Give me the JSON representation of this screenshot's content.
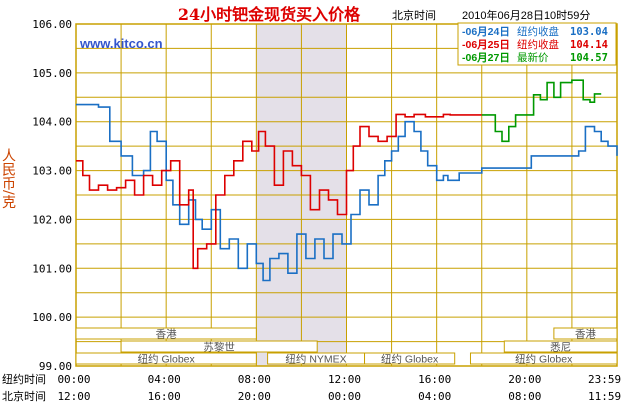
{
  "header": {
    "title": "24小时钯金现货买入价格",
    "beijing_time_label": "北京时间",
    "timestamp": "2010年06月28日10时59分",
    "watermark": "www.kitco.cn"
  },
  "legend": [
    {
      "date": "06月24日",
      "label": "纽约收盘",
      "value": "103.04",
      "color": "#1a6fc4"
    },
    {
      "date": "06月25日",
      "label": "纽约收盘",
      "value": "104.14",
      "color": "#dd0000"
    },
    {
      "date": "06月27日",
      "label": "最新价",
      "value": "104.57",
      "color": "#009900"
    }
  ],
  "axis": {
    "ylabel": "人民币/克",
    "row1_label": "纽约时间",
    "row2_label": "北京时间",
    "row1_ticks": [
      "00:00",
      "04:00",
      "08:00",
      "12:00",
      "16:00",
      "20:00",
      "23:59"
    ],
    "row2_ticks": [
      "12:00",
      "16:00",
      "20:00",
      "00:00",
      "04:00",
      "08:00",
      "11:59"
    ]
  },
  "markets": {
    "hongkong": "香港",
    "zurich": "苏黎世",
    "newyork": "纽约 Globex",
    "nymex": "纽约 NYMEX",
    "sydney": "悉尼"
  },
  "colors": {
    "grid": "#c8a000",
    "title": "#dd0000",
    "highlight": "#e4e0e8",
    "watermark": "#3355cc",
    "ylabel": "#cc4400"
  },
  "chart_data": {
    "type": "line",
    "title": "24小时钯金现货买入价格",
    "ylabel": "人民币/克",
    "ylim": [
      99.0,
      106.0
    ],
    "xlim_hours_newyork": [
      0,
      24
    ],
    "y_ticks": [
      "106.00",
      "105.00",
      "104.00",
      "103.00",
      "102.00",
      "101.00",
      "100.00",
      "99.00"
    ],
    "highlight_hours": [
      8,
      12
    ],
    "series": [
      {
        "name": "06月24日 纽约收盘 103.04",
        "color": "#1a6fc4",
        "x": [
          0,
          0.5,
          1,
          1.5,
          2,
          2.5,
          3,
          3.3,
          3.6,
          4,
          4.3,
          4.6,
          5,
          5.3,
          5.6,
          6,
          6.4,
          6.8,
          7.2,
          7.6,
          8,
          8.3,
          8.6,
          9,
          9.4,
          9.8,
          10.2,
          10.6,
          11,
          11.4,
          11.8,
          12.2,
          12.6,
          13,
          13.4,
          13.7,
          14,
          14.3,
          14.6,
          15,
          15.3,
          15.6,
          16,
          16.3,
          16.5,
          17,
          18,
          19,
          20,
          20.2,
          20.5,
          21,
          21.5,
          22,
          22.3,
          22.6,
          23,
          23.3,
          23.6,
          24
        ],
        "values": [
          104.35,
          104.35,
          104.3,
          103.6,
          103.3,
          102.9,
          103.0,
          103.8,
          103.6,
          102.8,
          102.3,
          101.9,
          102.4,
          102.0,
          101.8,
          102.2,
          101.4,
          101.6,
          101.0,
          101.5,
          101.1,
          100.75,
          101.2,
          101.3,
          100.9,
          101.7,
          101.2,
          101.6,
          101.2,
          101.7,
          101.5,
          102.1,
          102.6,
          102.3,
          102.9,
          103.2,
          103.4,
          103.7,
          104.0,
          103.8,
          103.4,
          103.1,
          102.8,
          102.9,
          102.8,
          102.95,
          103.05,
          103.05,
          103.05,
          103.3,
          103.3,
          103.3,
          103.3,
          103.3,
          103.4,
          103.9,
          103.8,
          103.6,
          103.5,
          103.3
        ]
      },
      {
        "name": "06月25日 纽约收盘 104.14",
        "color": "#dd0000",
        "x": [
          0,
          0.3,
          0.6,
          1,
          1.4,
          1.8,
          2.2,
          2.6,
          3,
          3.4,
          3.8,
          4.2,
          4.6,
          5,
          5.2,
          5.4,
          5.8,
          6.2,
          6.6,
          7,
          7.4,
          7.8,
          8.1,
          8.4,
          8.8,
          9.2,
          9.6,
          10,
          10.4,
          10.8,
          11.2,
          11.6,
          12,
          12.3,
          12.6,
          13,
          13.4,
          13.8,
          14.2,
          14.6,
          15,
          15.5,
          16,
          16.3,
          16.6,
          17,
          17.5,
          18
        ],
        "values": [
          103.2,
          102.9,
          102.6,
          102.7,
          102.6,
          102.65,
          102.8,
          102.5,
          102.9,
          102.7,
          103.0,
          103.2,
          102.3,
          102.6,
          101.0,
          101.4,
          101.5,
          102.5,
          102.9,
          103.2,
          103.6,
          103.4,
          103.8,
          103.5,
          102.7,
          103.4,
          103.1,
          102.9,
          102.2,
          102.6,
          102.4,
          102.1,
          103.0,
          103.5,
          103.9,
          103.7,
          103.6,
          103.7,
          104.15,
          104.1,
          104.15,
          104.1,
          104.1,
          104.15,
          104.14,
          104.14,
          104.14,
          104.14
        ]
      },
      {
        "name": "06月27日 最新价 104.57",
        "color": "#009900",
        "x": [
          18,
          18.3,
          18.6,
          18.9,
          19.2,
          19.5,
          20,
          20.3,
          20.6,
          20.9,
          21.2,
          21.5,
          21.8,
          22,
          22.5,
          22.8,
          23,
          23.3
        ],
        "values": [
          104.14,
          104.14,
          103.8,
          103.6,
          103.9,
          104.14,
          104.14,
          104.55,
          104.45,
          104.8,
          104.5,
          104.8,
          104.8,
          104.85,
          104.45,
          104.4,
          104.57,
          104.57
        ]
      }
    ]
  }
}
